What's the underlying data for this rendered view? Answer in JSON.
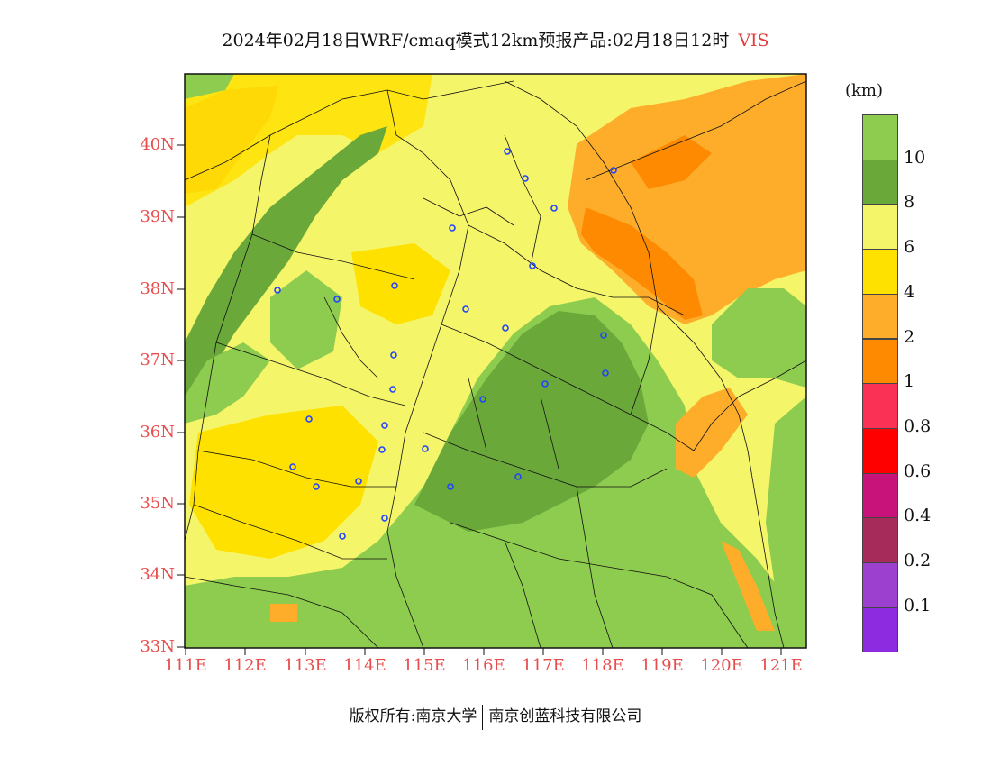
{
  "title": {
    "main": "2024年02月18日WRF/cmaq模式12km预报产品:02月18日12时",
    "variable": "VIS"
  },
  "axes": {
    "lat_labels": [
      "40N",
      "39N",
      "38N",
      "37N",
      "36N",
      "35N",
      "34N",
      "33N"
    ],
    "lon_labels": [
      "111E",
      "112E",
      "113E",
      "114E",
      "115E",
      "116E",
      "117E",
      "118E",
      "119E",
      "120E",
      "121E"
    ]
  },
  "colorbar": {
    "unit": "(km)",
    "labels": [
      "10",
      "8",
      "6",
      "4",
      "2",
      "1",
      "0.8",
      "0.6",
      "0.4",
      "0.2",
      "0.1"
    ],
    "colors": [
      "#8dcc4e",
      "#6aa83a",
      "#f5f56a",
      "#ffe100",
      "#fdad29",
      "#fd8a00",
      "#fb3055",
      "#ff0000",
      "#c8147a",
      "#a72b5a",
      "#9b40cf",
      "#8c2bdf"
    ]
  },
  "footer": {
    "left": "版权所有:南京大学",
    "right": "南京创蓝科技有限公司"
  }
}
